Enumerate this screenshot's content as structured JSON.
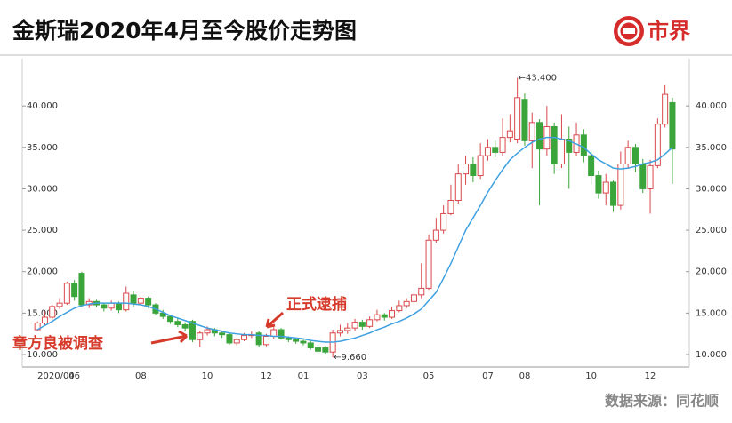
{
  "header": {
    "title": "金斯瑞2020年4月至今股价走势图",
    "logo": "市界"
  },
  "source": "数据来源：同花顺",
  "chart_data": {
    "type": "candlestick",
    "categories": [
      "2020/04",
      null,
      null,
      null,
      null,
      "06",
      null,
      null,
      null,
      null,
      null,
      null,
      null,
      null,
      "08",
      null,
      null,
      null,
      null,
      null,
      null,
      null,
      null,
      "10",
      null,
      null,
      null,
      null,
      null,
      null,
      null,
      "12",
      null,
      null,
      null,
      null,
      "01",
      null,
      null,
      null,
      null,
      null,
      null,
      null,
      "03",
      null,
      null,
      null,
      null,
      null,
      null,
      null,
      null,
      "05",
      null,
      null,
      null,
      null,
      null,
      null,
      null,
      "07",
      null,
      null,
      null,
      null,
      "08",
      null,
      null,
      null,
      null,
      null,
      null,
      null,
      null,
      "10",
      null,
      null,
      null,
      null,
      null,
      null,
      null,
      "12",
      null,
      null,
      null
    ],
    "open": [
      13.0,
      13.8,
      14.5,
      15.8,
      16.2,
      18.6,
      19.8,
      16.0,
      16.4,
      16.0,
      15.6,
      16.2,
      15.4,
      17.2,
      16.2,
      16.8,
      16.0,
      15.0,
      14.6,
      14.0,
      13.6,
      14.0,
      11.8,
      12.6,
      13.0,
      12.6,
      12.4,
      11.4,
      11.8,
      12.3,
      12.6,
      11.2,
      12.2,
      13.0,
      12.0,
      11.8,
      11.6,
      11.4,
      10.8,
      10.8,
      10.3,
      12.6,
      12.9,
      13.2,
      13.9,
      13.4,
      14.2,
      14.8,
      14.5,
      15.3,
      15.9,
      16.4,
      17.2,
      18.0,
      23.8,
      25.0,
      27.0,
      28.6,
      31.8,
      33.0,
      31.6,
      34.0,
      35.0,
      34.4,
      36.2,
      36.0,
      40.8,
      35.8,
      38.0,
      34.8,
      37.5,
      33.0,
      36.0,
      34.4,
      36.5,
      34.0,
      31.6,
      29.5,
      30.8,
      28.0,
      33.0,
      35.0,
      33.0,
      30.0,
      32.8,
      37.8,
      40.4
    ],
    "close": [
      13.8,
      14.5,
      15.8,
      16.2,
      18.6,
      17.0,
      16.0,
      16.4,
      16.0,
      15.6,
      16.2,
      15.4,
      17.4,
      16.2,
      16.8,
      16.0,
      15.0,
      14.6,
      14.0,
      13.6,
      13.2,
      11.8,
      12.6,
      13.0,
      12.6,
      12.4,
      11.4,
      11.8,
      12.3,
      12.4,
      11.2,
      12.2,
      13.0,
      12.0,
      11.8,
      11.6,
      11.4,
      10.8,
      10.4,
      10.3,
      12.6,
      12.9,
      13.2,
      13.9,
      13.4,
      14.2,
      14.8,
      14.5,
      15.3,
      15.9,
      16.4,
      17.2,
      18.0,
      23.8,
      25.0,
      27.0,
      28.6,
      31.8,
      33.0,
      31.6,
      34.0,
      35.0,
      34.4,
      36.2,
      37.0,
      41.0,
      35.8,
      38.0,
      34.8,
      37.5,
      33.0,
      36.0,
      34.4,
      36.5,
      34.0,
      31.6,
      29.5,
      30.8,
      28.0,
      33.0,
      35.0,
      33.0,
      30.0,
      32.8,
      37.8,
      41.4,
      34.8
    ],
    "high": [
      14.0,
      15.2,
      16.0,
      16.8,
      18.8,
      19.0,
      20.0,
      16.8,
      16.6,
      16.2,
      16.5,
      16.4,
      18.2,
      17.6,
      17.0,
      17.0,
      16.2,
      15.4,
      14.8,
      14.4,
      13.9,
      14.2,
      12.9,
      13.4,
      13.2,
      12.9,
      12.6,
      12.0,
      12.6,
      12.8,
      12.8,
      12.5,
      13.3,
      13.2,
      12.2,
      12.0,
      11.8,
      11.6,
      11.2,
      11.0,
      13.0,
      13.6,
      13.8,
      14.3,
      14.2,
      14.6,
      15.4,
      15.0,
      15.8,
      16.5,
      16.8,
      17.6,
      21.0,
      24.5,
      26.5,
      28.0,
      30.5,
      33.0,
      34.0,
      33.8,
      35.5,
      36.0,
      35.8,
      38.5,
      39.0,
      43.4,
      41.5,
      39.2,
      38.4,
      40.0,
      38.0,
      39.0,
      37.5,
      38.0,
      37.2,
      34.6,
      32.2,
      31.8,
      31.0,
      34.5,
      35.8,
      35.4,
      33.6,
      33.5,
      38.5,
      42.5,
      41.0
    ],
    "low": [
      12.8,
      13.5,
      14.2,
      15.5,
      16.0,
      16.5,
      15.8,
      15.6,
      15.7,
      15.2,
      15.3,
      15.0,
      15.2,
      15.8,
      15.9,
      15.6,
      14.8,
      14.3,
      13.7,
      13.3,
      12.8,
      11.5,
      10.9,
      12.3,
      12.2,
      12.0,
      11.2,
      11.1,
      11.6,
      12.0,
      10.9,
      11.0,
      11.9,
      11.8,
      11.5,
      11.3,
      11.1,
      10.6,
      10.1,
      10.1,
      9.66,
      12.2,
      12.5,
      12.9,
      13.0,
      13.2,
      14.0,
      14.1,
      14.3,
      15.1,
      15.6,
      16.0,
      16.8,
      17.8,
      23.5,
      24.6,
      26.8,
      28.2,
      30.5,
      30.8,
      31.2,
      33.4,
      33.8,
      34.0,
      35.6,
      35.5,
      35.2,
      32.5,
      28.0,
      34.0,
      31.8,
      32.5,
      30.0,
      34.0,
      33.2,
      30.5,
      28.8,
      28.0,
      27.2,
      27.5,
      32.4,
      32.0,
      29.5,
      27.0,
      32.5,
      37.4,
      30.6
    ],
    "ma": [
      13.0,
      13.5,
      14.0,
      14.6,
      15.1,
      15.6,
      15.9,
      16.1,
      16.2,
      16.2,
      16.2,
      16.2,
      16.2,
      16.1,
      16.0,
      15.8,
      15.5,
      15.1,
      14.7,
      14.4,
      14.1,
      13.8,
      13.5,
      13.2,
      13.0,
      12.8,
      12.6,
      12.5,
      12.4,
      12.4,
      12.3,
      12.3,
      12.2,
      12.2,
      12.1,
      12.0,
      11.9,
      11.7,
      11.6,
      11.5,
      11.5,
      11.6,
      11.8,
      12.0,
      12.3,
      12.6,
      13.0,
      13.3,
      13.7,
      14.0,
      14.4,
      14.9,
      15.5,
      16.5,
      17.5,
      19.2,
      21.0,
      23.0,
      25.0,
      26.5,
      28.0,
      29.6,
      31.0,
      32.3,
      33.5,
      34.3,
      35.0,
      35.6,
      36.0,
      36.2,
      36.2,
      36.0,
      35.8,
      35.4,
      35.0,
      34.2,
      33.5,
      33.0,
      32.5,
      32.4,
      32.5,
      32.7,
      33.0,
      33.2,
      33.5,
      34.2,
      35.0
    ],
    "up_color": "#d9474c",
    "down_color": "#3aa53a",
    "ma_color": "#3fa0e0",
    "ylim": [
      8.5,
      45.7
    ],
    "yticks": [
      {
        "value": 10,
        "label": "10.000"
      },
      {
        "value": 15,
        "label": "15.000"
      },
      {
        "value": 20,
        "label": "20.000"
      },
      {
        "value": 25,
        "label": "25.000"
      },
      {
        "value": 30,
        "label": "30.000"
      },
      {
        "value": 35,
        "label": "35.000"
      },
      {
        "value": 40,
        "label": "40.000"
      }
    ],
    "extremes": [
      {
        "value": 43.4,
        "label": "←43.400"
      },
      {
        "value": 9.66,
        "label": "←9.660"
      }
    ],
    "annotations": [
      "正式逮捕",
      "章方良被调查"
    ]
  }
}
